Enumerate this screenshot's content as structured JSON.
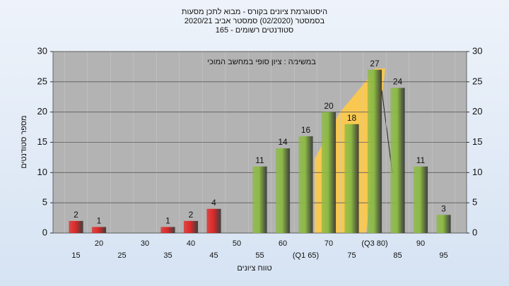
{
  "chart_data": {
    "type": "bar",
    "title": [
      "היסטוגרמת ציונים בקורס - מבוא לתכן מסעות",
      "בסמסטר  (02/2020)  סמסטר אביב 2020/21",
      "סטודנטים רשומים - 165"
    ],
    "annotation": "במשימה : ציון סופי במחשב המוכי",
    "y_label": "מספר סטודנטים",
    "x_label": "טווח ציונים",
    "categories": [
      "15",
      "20",
      "25",
      "30",
      "35",
      "40",
      "45",
      "50",
      "55",
      "60",
      "(Q1 65)",
      "70",
      "75",
      "(Q3 80)",
      "85",
      "90",
      "95"
    ],
    "values": [
      2,
      1,
      0,
      0,
      1,
      2,
      4,
      0,
      11,
      14,
      16,
      20,
      18,
      27,
      24,
      11,
      3
    ],
    "colors": [
      "#e02828",
      "#e02828",
      "#e02828",
      "#e02828",
      "#e02828",
      "#e02828",
      "#e02828",
      "#e02828",
      "#8cba44",
      "#8cba44",
      "#8cba44",
      "#8cba44",
      "#8cba44",
      "#8cba44",
      "#8cba44",
      "#8cba44",
      "#8cba44"
    ],
    "ylim": [
      0,
      30
    ],
    "yticks": [
      0,
      5,
      10,
      15,
      20,
      25,
      30
    ],
    "grid": true
  }
}
